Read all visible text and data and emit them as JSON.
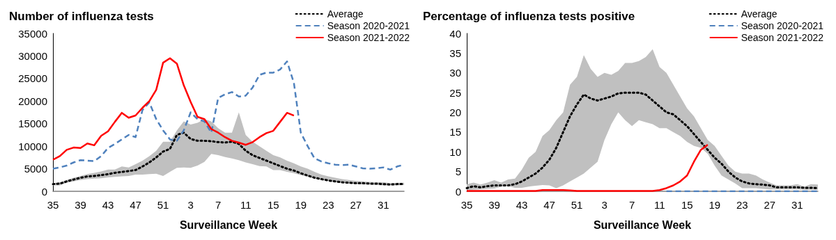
{
  "chart_data": [
    {
      "type": "line",
      "title": "Number of influenza tests",
      "xlabel": "Surveillance Week",
      "legend": "top right",
      "grid": false,
      "marker": "none",
      "categories": [
        "35",
        null,
        null,
        null,
        "39",
        null,
        null,
        null,
        "43",
        null,
        null,
        null,
        "47",
        null,
        null,
        null,
        "51",
        null,
        null,
        null,
        "3",
        null,
        null,
        null,
        "7",
        null,
        null,
        null,
        "11",
        null,
        null,
        null,
        "15",
        null,
        null,
        null,
        "19",
        null,
        null,
        null,
        "23",
        null,
        null,
        null,
        "27",
        null,
        null,
        null,
        "31",
        null,
        null,
        null
      ],
      "ylim": [
        0,
        35000
      ],
      "yticks": [
        0,
        5000,
        10000,
        15000,
        20000,
        25000,
        30000,
        35000
      ],
      "series": [
        {
          "name": "Average",
          "color": "#000000",
          "line_style": "dotted",
          "values": [
            1600,
            1700,
            2200,
            2600,
            3000,
            3300,
            3400,
            3600,
            3800,
            4100,
            4300,
            4500,
            4700,
            5500,
            6400,
            7500,
            8800,
            9400,
            12500,
            13000,
            11600,
            11200,
            11200,
            11100,
            10900,
            10800,
            11000,
            10500,
            9000,
            8000,
            7400,
            6800,
            6200,
            5600,
            5000,
            4600,
            4000,
            3500,
            3000,
            2700,
            2400,
            2200,
            2000,
            1900,
            1800,
            1800,
            1700,
            1700,
            1600,
            1500,
            1600,
            1600
          ],
          "lower": [
            1300,
            1300,
            1900,
            2200,
            2500,
            2700,
            2800,
            2900,
            3100,
            3200,
            3300,
            3400,
            3700,
            3700,
            3800,
            3900,
            3400,
            4300,
            5200,
            5300,
            5200,
            5700,
            6500,
            8300,
            8000,
            7600,
            7300,
            6900,
            6400,
            6000,
            5600,
            5500,
            4700,
            4700,
            4300,
            4000,
            3600,
            3200,
            2800,
            2500,
            2300,
            2100,
            1900,
            1700,
            1600,
            1500,
            1500,
            1400,
            1300,
            1300,
            1300,
            1400
          ],
          "upper": [
            1800,
            2000,
            2500,
            3000,
            3400,
            3800,
            4100,
            4400,
            4800,
            4800,
            5500,
            5300,
            6000,
            6800,
            7800,
            9000,
            11000,
            11000,
            13500,
            15500,
            14800,
            15200,
            16000,
            15500,
            14000,
            13000,
            13000,
            17500,
            12500,
            11000,
            10000,
            9000,
            8000,
            7500,
            6800,
            6200,
            5500,
            5000,
            4300,
            3700,
            3300,
            3000,
            2700,
            2500,
            2300,
            2200,
            2100,
            2000,
            2000,
            1800,
            1900,
            1900
          ]
        },
        {
          "name": "Season 2020-2021",
          "color": "#4f81bd",
          "line_style": "dashed",
          "values": [
            5000,
            5300,
            5700,
            6400,
            6900,
            6800,
            6700,
            7800,
            9600,
            10500,
            11500,
            12500,
            12000,
            18000,
            19700,
            16000,
            13500,
            11500,
            11200,
            13500,
            17500,
            16000,
            15500,
            13000,
            20700,
            21500,
            22000,
            21000,
            21200,
            23000,
            25800,
            26300,
            26300,
            27000,
            28800,
            24000,
            13000,
            10000,
            7300,
            6600,
            6200,
            5900,
            5800,
            5900,
            5500,
            5100,
            5000,
            5100,
            5300,
            4800,
            5500,
            5900
          ]
        },
        {
          "name": "Season 2021-2022",
          "color": "#ff0000",
          "line_style": "solid",
          "values": [
            7000,
            7800,
            9200,
            9700,
            9600,
            10600,
            10200,
            12300,
            13300,
            15400,
            17400,
            16300,
            16800,
            18500,
            20000,
            22500,
            28500,
            29500,
            28300,
            23500,
            19800,
            16500,
            16000,
            13800,
            13000,
            12000,
            11200,
            10800,
            10300,
            10900,
            12000,
            12900,
            13400,
            15400,
            17400,
            16800,
            null,
            null,
            null,
            null,
            null,
            null,
            null,
            null,
            null,
            null,
            null,
            null,
            null,
            null,
            null,
            null
          ]
        }
      ]
    },
    {
      "type": "line",
      "title": "Percentage of influenza tests positive",
      "xlabel": "Surveillance Week",
      "legend": "top right",
      "grid": false,
      "marker": "none",
      "categories": [
        "35",
        null,
        null,
        null,
        "39",
        null,
        null,
        null,
        "43",
        null,
        null,
        null,
        "47",
        null,
        null,
        null,
        "51",
        null,
        null,
        null,
        "3",
        null,
        null,
        null,
        "7",
        null,
        null,
        null,
        "11",
        null,
        null,
        null,
        "15",
        null,
        null,
        null,
        "19",
        null,
        null,
        null,
        "23",
        null,
        null,
        null,
        "27",
        null,
        null,
        null,
        "31",
        null,
        null,
        null
      ],
      "ylim": [
        0,
        40
      ],
      "yticks": [
        0,
        5,
        10,
        15,
        20,
        25,
        30,
        35,
        40
      ],
      "series": [
        {
          "name": "Average",
          "color": "#000000",
          "line_style": "dotted",
          "values": [
            0.8,
            1.3,
            1.0,
            1.3,
            1.5,
            1.5,
            1.5,
            1.8,
            2.5,
            3.5,
            4.5,
            6,
            8,
            11,
            15,
            19,
            22,
            24.5,
            23.5,
            23,
            23.5,
            24,
            24.8,
            25,
            25,
            25,
            24.5,
            23,
            21.5,
            20,
            19.5,
            18,
            16.5,
            14.5,
            12.5,
            10.5,
            8.5,
            7,
            5,
            3.5,
            2.5,
            2,
            1.8,
            1.7,
            1.5,
            1.0,
            1.0,
            1.0,
            1.0,
            0.9,
            0.9,
            0.8
          ],
          "lower": [
            0.3,
            0.4,
            0.5,
            0.6,
            0.7,
            1.2,
            1.3,
            0.9,
            0.9,
            1.2,
            1.4,
            1.6,
            1.5,
            0.8,
            1.5,
            2.5,
            3.5,
            4.5,
            6,
            7.5,
            13,
            17,
            20,
            18,
            16.5,
            18,
            17.5,
            17,
            16,
            16,
            15,
            14,
            12.5,
            11.5,
            11,
            9.5,
            6.5,
            4,
            3,
            2,
            0.8,
            0.8,
            0.8,
            0.6,
            0.5,
            0.5,
            0.5,
            0.5,
            0.5,
            0.4,
            0.4,
            0.4
          ],
          "upper": [
            1.8,
            2.2,
            1.7,
            2.2,
            2.8,
            2.2,
            3,
            3.2,
            5.5,
            8.5,
            10,
            14,
            15.5,
            18,
            20,
            27,
            29,
            34.5,
            31,
            29,
            30,
            29.5,
            30.5,
            32.5,
            32.5,
            33,
            34,
            36,
            31.5,
            30,
            27,
            24,
            21,
            19,
            16,
            13,
            11.5,
            9,
            6.5,
            5,
            4.5,
            4.5,
            4,
            3,
            2.2,
            1.5,
            1.5,
            1.5,
            1.8,
            1.2,
            1.8,
            1.7
          ]
        },
        {
          "name": "Season 2020-2021",
          "color": "#4f81bd",
          "line_style": "dashed",
          "values": [
            null,
            null,
            null,
            null,
            null,
            null,
            null,
            null,
            null,
            null,
            null,
            null,
            null,
            null,
            null,
            null,
            null,
            null,
            null,
            null,
            null,
            null,
            null,
            null,
            null,
            null,
            null,
            null,
            null,
            0,
            0,
            0,
            0,
            0,
            0,
            0,
            0,
            0,
            0,
            0,
            0,
            0,
            0,
            0,
            0,
            0,
            0,
            0,
            0,
            0,
            0,
            0
          ]
        },
        {
          "name": "Season 2021-2022",
          "color": "#ff0000",
          "line_style": "solid",
          "values": [
            0.1,
            0.1,
            0.1,
            0.1,
            0.1,
            0.1,
            0.1,
            0.1,
            0.1,
            0.1,
            0.1,
            0.3,
            0.3,
            0.3,
            0.3,
            0.2,
            0.1,
            0.1,
            0.1,
            0.1,
            0.1,
            0.1,
            0.1,
            0.1,
            0.1,
            0.1,
            0.1,
            0.1,
            0.3,
            0.8,
            1.5,
            2.5,
            4,
            7.5,
            10.5,
            11.8,
            null,
            null,
            null,
            null,
            null,
            null,
            null,
            null,
            null,
            null,
            null,
            null,
            null,
            null,
            null,
            null
          ]
        }
      ]
    }
  ]
}
